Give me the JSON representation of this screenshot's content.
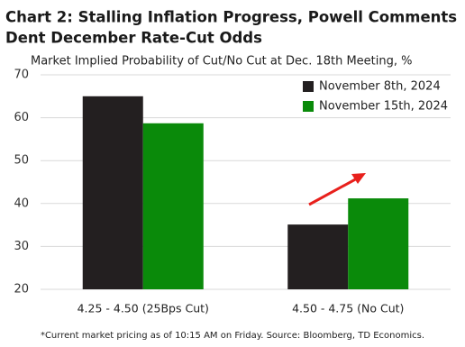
{
  "chart_data": {
    "type": "bar",
    "title": [
      "Chart 2: Stalling Inflation Progress, Powell Comments",
      "Dent December Rate-Cut Odds"
    ],
    "subtitle": "Market Implied Probability of Cut/No Cut at Dec. 18th Meeting, %",
    "categories": [
      "4.25 - 4.50 (25Bps Cut)",
      "4.50 - 4.75 (No Cut)"
    ],
    "series": [
      {
        "name": "November 8th, 2024",
        "color": "#231f20",
        "values": [
          65,
          35.1
        ]
      },
      {
        "name": "November 15th, 2024",
        "color": "#0a8a0a",
        "values": [
          58.7,
          41.2
        ]
      }
    ],
    "ylim": [
      20,
      70
    ],
    "yticks": [
      20,
      30,
      40,
      50,
      60,
      70
    ],
    "grid": true,
    "footnote": "*Current market pricing as of 10:15 AM on Friday. Source: Bloomberg, TD Economics."
  }
}
